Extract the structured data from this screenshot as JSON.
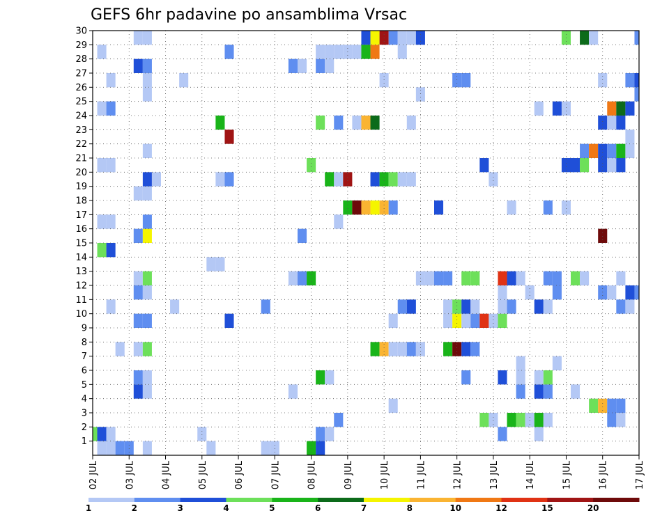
{
  "chart_data": {
    "type": "heatmap",
    "title": "GEFS 6hr padavine po ansamblima Vrsac",
    "xlabel": "",
    "ylabel": "",
    "x_tick_labels": [
      "02 JUL",
      "03 JUL",
      "04 JUL",
      "05 JUL",
      "06 JUL",
      "07 JUL",
      "08 JUL",
      "09 JUL",
      "10 JUL",
      "11 JUL",
      "12 JUL",
      "13 JUL",
      "14 JUL",
      "15 JUL",
      "16 JUL",
      "17 JUL"
    ],
    "x_range_steps": [
      0,
      60
    ],
    "steps_per_day": 4,
    "y_tick_labels": [
      "1",
      "2",
      "3",
      "4",
      "5",
      "6",
      "7",
      "8",
      "9",
      "10",
      "11",
      "12",
      "13",
      "14",
      "15",
      "16",
      "17",
      "18",
      "19",
      "20",
      "21",
      "22",
      "23",
      "24",
      "25",
      "26",
      "27",
      "28",
      "29",
      "30"
    ],
    "y_range": [
      0,
      30
    ],
    "grid": true,
    "color_levels": [
      {
        "label": "1",
        "color": "#b4c8f5"
      },
      {
        "label": "2",
        "color": "#5f8ef0"
      },
      {
        "label": "3",
        "color": "#1f4fd8"
      },
      {
        "label": "4",
        "color": "#6de05a"
      },
      {
        "label": "5",
        "color": "#19b419"
      },
      {
        "label": "6",
        "color": "#0c6b1a"
      },
      {
        "label": "7",
        "color": "#f5f500"
      },
      {
        "label": "8",
        "color": "#fab432"
      },
      {
        "label": "10",
        "color": "#f07814"
      },
      {
        "label": "12",
        "color": "#e03214"
      },
      {
        "label": "15",
        "color": "#a01414"
      },
      {
        "label": "20",
        "color": "#6e0a0a"
      }
    ],
    "cells": [
      {
        "m": 0,
        "t": 1,
        "c": 1
      },
      {
        "m": 0,
        "t": 2,
        "c": 1
      },
      {
        "m": 0,
        "t": 3,
        "c": 2
      },
      {
        "m": 0,
        "t": 4,
        "c": 2
      },
      {
        "m": 0,
        "t": 6,
        "c": 1
      },
      {
        "m": 0,
        "t": 13,
        "c": 1
      },
      {
        "m": 0,
        "t": 19,
        "c": 1
      },
      {
        "m": 0,
        "t": 20,
        "c": 1
      },
      {
        "m": 0,
        "t": 24,
        "c": 5
      },
      {
        "m": 0,
        "t": 25,
        "c": 3
      },
      {
        "m": 1,
        "t": 0,
        "c": 4
      },
      {
        "m": 1,
        "t": 1,
        "c": 3
      },
      {
        "m": 1,
        "t": 2,
        "c": 1
      },
      {
        "m": 1,
        "t": 12,
        "c": 1
      },
      {
        "m": 1,
        "t": 25,
        "c": 2
      },
      {
        "m": 1,
        "t": 26,
        "c": 1
      },
      {
        "m": 1,
        "t": 45,
        "c": 2
      },
      {
        "m": 1,
        "t": 49,
        "c": 1
      },
      {
        "m": 2,
        "t": 27,
        "c": 2
      },
      {
        "m": 2,
        "t": 43,
        "c": 4
      },
      {
        "m": 2,
        "t": 44,
        "c": 1
      },
      {
        "m": 2,
        "t": 46,
        "c": 5
      },
      {
        "m": 2,
        "t": 47,
        "c": 4
      },
      {
        "m": 2,
        "t": 48,
        "c": 1
      },
      {
        "m": 2,
        "t": 49,
        "c": 5
      },
      {
        "m": 2,
        "t": 50,
        "c": 1
      },
      {
        "m": 2,
        "t": 57,
        "c": 2
      },
      {
        "m": 2,
        "t": 58,
        "c": 1
      },
      {
        "m": 3,
        "t": 33,
        "c": 1
      },
      {
        "m": 3,
        "t": 55,
        "c": 4
      },
      {
        "m": 3,
        "t": 56,
        "c": 8
      },
      {
        "m": 3,
        "t": 57,
        "c": 2
      },
      {
        "m": 3,
        "t": 58,
        "c": 2
      },
      {
        "m": 4,
        "t": 5,
        "c": 3
      },
      {
        "m": 4,
        "t": 6,
        "c": 1
      },
      {
        "m": 4,
        "t": 22,
        "c": 1
      },
      {
        "m": 4,
        "t": 47,
        "c": 2
      },
      {
        "m": 4,
        "t": 49,
        "c": 3
      },
      {
        "m": 4,
        "t": 50,
        "c": 2
      },
      {
        "m": 4,
        "t": 53,
        "c": 1
      },
      {
        "m": 5,
        "t": 5,
        "c": 2
      },
      {
        "m": 5,
        "t": 6,
        "c": 1
      },
      {
        "m": 5,
        "t": 25,
        "c": 5
      },
      {
        "m": 5,
        "t": 26,
        "c": 1
      },
      {
        "m": 5,
        "t": 41,
        "c": 2
      },
      {
        "m": 5,
        "t": 45,
        "c": 3
      },
      {
        "m": 5,
        "t": 47,
        "c": 1
      },
      {
        "m": 5,
        "t": 49,
        "c": 1
      },
      {
        "m": 5,
        "t": 50,
        "c": 4
      },
      {
        "m": 6,
        "t": 47,
        "c": 1
      },
      {
        "m": 6,
        "t": 51,
        "c": 1
      },
      {
        "m": 7,
        "t": 3,
        "c": 1
      },
      {
        "m": 7,
        "t": 5,
        "c": 1
      },
      {
        "m": 7,
        "t": 6,
        "c": 4
      },
      {
        "m": 7,
        "t": 31,
        "c": 5
      },
      {
        "m": 7,
        "t": 32,
        "c": 8
      },
      {
        "m": 7,
        "t": 33,
        "c": 1
      },
      {
        "m": 7,
        "t": 34,
        "c": 1
      },
      {
        "m": 7,
        "t": 35,
        "c": 2
      },
      {
        "m": 7,
        "t": 36,
        "c": 1
      },
      {
        "m": 7,
        "t": 39,
        "c": 5
      },
      {
        "m": 7,
        "t": 40,
        "c": 12
      },
      {
        "m": 7,
        "t": 41,
        "c": 3
      },
      {
        "m": 7,
        "t": 42,
        "c": 2
      },
      {
        "m": 9,
        "t": 5,
        "c": 2
      },
      {
        "m": 9,
        "t": 6,
        "c": 2
      },
      {
        "m": 9,
        "t": 15,
        "c": 3
      },
      {
        "m": 9,
        "t": 33,
        "c": 1
      },
      {
        "m": 9,
        "t": 39,
        "c": 1
      },
      {
        "m": 9,
        "t": 40,
        "c": 7
      },
      {
        "m": 9,
        "t": 41,
        "c": 1
      },
      {
        "m": 9,
        "t": 42,
        "c": 2
      },
      {
        "m": 9,
        "t": 43,
        "c": 10
      },
      {
        "m": 9,
        "t": 44,
        "c": 1
      },
      {
        "m": 9,
        "t": 45,
        "c": 4
      },
      {
        "m": 10,
        "t": 2,
        "c": 1
      },
      {
        "m": 10,
        "t": 9,
        "c": 1
      },
      {
        "m": 10,
        "t": 19,
        "c": 2
      },
      {
        "m": 10,
        "t": 34,
        "c": 2
      },
      {
        "m": 10,
        "t": 35,
        "c": 3
      },
      {
        "m": 10,
        "t": 39,
        "c": 1
      },
      {
        "m": 10,
        "t": 40,
        "c": 4
      },
      {
        "m": 10,
        "t": 41,
        "c": 3
      },
      {
        "m": 10,
        "t": 42,
        "c": 1
      },
      {
        "m": 10,
        "t": 45,
        "c": 1
      },
      {
        "m": 10,
        "t": 46,
        "c": 2
      },
      {
        "m": 10,
        "t": 49,
        "c": 3
      },
      {
        "m": 10,
        "t": 50,
        "c": 1
      },
      {
        "m": 10,
        "t": 58,
        "c": 2
      },
      {
        "m": 10,
        "t": 59,
        "c": 1
      },
      {
        "m": 11,
        "t": 5,
        "c": 2
      },
      {
        "m": 11,
        "t": 6,
        "c": 1
      },
      {
        "m": 11,
        "t": 45,
        "c": 1
      },
      {
        "m": 11,
        "t": 48,
        "c": 1
      },
      {
        "m": 11,
        "t": 51,
        "c": 2
      },
      {
        "m": 11,
        "t": 56,
        "c": 2
      },
      {
        "m": 11,
        "t": 57,
        "c": 1
      },
      {
        "m": 11,
        "t": 59,
        "c": 3
      },
      {
        "m": 11,
        "t": 60,
        "c": 2
      },
      {
        "m": 12,
        "t": 5,
        "c": 1
      },
      {
        "m": 12,
        "t": 6,
        "c": 4
      },
      {
        "m": 12,
        "t": 22,
        "c": 1
      },
      {
        "m": 12,
        "t": 23,
        "c": 2
      },
      {
        "m": 12,
        "t": 24,
        "c": 5
      },
      {
        "m": 12,
        "t": 36,
        "c": 1
      },
      {
        "m": 12,
        "t": 37,
        "c": 1
      },
      {
        "m": 12,
        "t": 38,
        "c": 2
      },
      {
        "m": 12,
        "t": 39,
        "c": 2
      },
      {
        "m": 12,
        "t": 41,
        "c": 4
      },
      {
        "m": 12,
        "t": 42,
        "c": 4
      },
      {
        "m": 12,
        "t": 45,
        "c": 10
      },
      {
        "m": 12,
        "t": 46,
        "c": 3
      },
      {
        "m": 12,
        "t": 47,
        "c": 1
      },
      {
        "m": 12,
        "t": 50,
        "c": 2
      },
      {
        "m": 12,
        "t": 51,
        "c": 2
      },
      {
        "m": 12,
        "t": 53,
        "c": 4
      },
      {
        "m": 12,
        "t": 54,
        "c": 1
      },
      {
        "m": 12,
        "t": 58,
        "c": 1
      },
      {
        "m": 13,
        "t": 13,
        "c": 1
      },
      {
        "m": 13,
        "t": 14,
        "c": 1
      },
      {
        "m": 14,
        "t": 1,
        "c": 4
      },
      {
        "m": 14,
        "t": 2,
        "c": 3
      },
      {
        "m": 15,
        "t": 5,
        "c": 2
      },
      {
        "m": 15,
        "t": 6,
        "c": 7
      },
      {
        "m": 15,
        "t": 23,
        "c": 2
      },
      {
        "m": 15,
        "t": 56,
        "c": 12
      },
      {
        "m": 16,
        "t": 1,
        "c": 1
      },
      {
        "m": 16,
        "t": 2,
        "c": 1
      },
      {
        "m": 16,
        "t": 6,
        "c": 2
      },
      {
        "m": 16,
        "t": 27,
        "c": 1
      },
      {
        "m": 17,
        "t": 28,
        "c": 5
      },
      {
        "m": 17,
        "t": 29,
        "c": 12
      },
      {
        "m": 17,
        "t": 30,
        "c": 8
      },
      {
        "m": 17,
        "t": 31,
        "c": 7
      },
      {
        "m": 17,
        "t": 32,
        "c": 8
      },
      {
        "m": 17,
        "t": 33,
        "c": 2
      },
      {
        "m": 17,
        "t": 38,
        "c": 3
      },
      {
        "m": 17,
        "t": 46,
        "c": 1
      },
      {
        "m": 17,
        "t": 50,
        "c": 2
      },
      {
        "m": 17,
        "t": 52,
        "c": 1
      },
      {
        "m": 18,
        "t": 5,
        "c": 1
      },
      {
        "m": 18,
        "t": 6,
        "c": 1
      },
      {
        "m": 19,
        "t": 6,
        "c": 3
      },
      {
        "m": 19,
        "t": 7,
        "c": 1
      },
      {
        "m": 19,
        "t": 14,
        "c": 1
      },
      {
        "m": 19,
        "t": 15,
        "c": 2
      },
      {
        "m": 19,
        "t": 26,
        "c": 5
      },
      {
        "m": 19,
        "t": 27,
        "c": 1
      },
      {
        "m": 19,
        "t": 28,
        "c": 11
      },
      {
        "m": 19,
        "t": 31,
        "c": 3
      },
      {
        "m": 19,
        "t": 32,
        "c": 5
      },
      {
        "m": 19,
        "t": 33,
        "c": 4
      },
      {
        "m": 19,
        "t": 34,
        "c": 1
      },
      {
        "m": 19,
        "t": 35,
        "c": 1
      },
      {
        "m": 19,
        "t": 44,
        "c": 1
      },
      {
        "m": 20,
        "t": 1,
        "c": 1
      },
      {
        "m": 20,
        "t": 2,
        "c": 1
      },
      {
        "m": 20,
        "t": 24,
        "c": 4
      },
      {
        "m": 20,
        "t": 43,
        "c": 3
      },
      {
        "m": 20,
        "t": 52,
        "c": 3
      },
      {
        "m": 20,
        "t": 53,
        "c": 3
      },
      {
        "m": 20,
        "t": 54,
        "c": 4
      },
      {
        "m": 20,
        "t": 56,
        "c": 3
      },
      {
        "m": 20,
        "t": 57,
        "c": 1
      },
      {
        "m": 20,
        "t": 58,
        "c": 3
      },
      {
        "m": 21,
        "t": 6,
        "c": 1
      },
      {
        "m": 21,
        "t": 54,
        "c": 2
      },
      {
        "m": 21,
        "t": 55,
        "c": 9
      },
      {
        "m": 21,
        "t": 56,
        "c": 3
      },
      {
        "m": 21,
        "t": 57,
        "c": 2
      },
      {
        "m": 21,
        "t": 58,
        "c": 5
      },
      {
        "m": 21,
        "t": 59,
        "c": 1
      },
      {
        "m": 22,
        "t": 15,
        "c": 11
      },
      {
        "m": 22,
        "t": 59,
        "c": 1
      },
      {
        "m": 23,
        "t": 14,
        "c": 5
      },
      {
        "m": 23,
        "t": 25,
        "c": 4
      },
      {
        "m": 23,
        "t": 27,
        "c": 2
      },
      {
        "m": 23,
        "t": 29,
        "c": 1
      },
      {
        "m": 23,
        "t": 30,
        "c": 8
      },
      {
        "m": 23,
        "t": 31,
        "c": 6
      },
      {
        "m": 23,
        "t": 35,
        "c": 1
      },
      {
        "m": 23,
        "t": 56,
        "c": 3
      },
      {
        "m": 23,
        "t": 57,
        "c": 1
      },
      {
        "m": 23,
        "t": 58,
        "c": 3
      },
      {
        "m": 24,
        "t": 1,
        "c": 1
      },
      {
        "m": 24,
        "t": 2,
        "c": 2
      },
      {
        "m": 24,
        "t": 49,
        "c": 1
      },
      {
        "m": 24,
        "t": 51,
        "c": 3
      },
      {
        "m": 24,
        "t": 52,
        "c": 1
      },
      {
        "m": 24,
        "t": 57,
        "c": 9
      },
      {
        "m": 24,
        "t": 58,
        "c": 6
      },
      {
        "m": 24,
        "t": 59,
        "c": 3
      },
      {
        "m": 25,
        "t": 6,
        "c": 1
      },
      {
        "m": 25,
        "t": 36,
        "c": 1
      },
      {
        "m": 25,
        "t": 60,
        "c": 2
      },
      {
        "m": 26,
        "t": 2,
        "c": 1
      },
      {
        "m": 26,
        "t": 6,
        "c": 1
      },
      {
        "m": 26,
        "t": 10,
        "c": 1
      },
      {
        "m": 26,
        "t": 32,
        "c": 1
      },
      {
        "m": 26,
        "t": 40,
        "c": 2
      },
      {
        "m": 26,
        "t": 41,
        "c": 2
      },
      {
        "m": 26,
        "t": 56,
        "c": 1
      },
      {
        "m": 26,
        "t": 59,
        "c": 2
      },
      {
        "m": 26,
        "t": 60,
        "c": 3
      },
      {
        "m": 27,
        "t": 5,
        "c": 3
      },
      {
        "m": 27,
        "t": 6,
        "c": 2
      },
      {
        "m": 27,
        "t": 22,
        "c": 2
      },
      {
        "m": 27,
        "t": 23,
        "c": 1
      },
      {
        "m": 27,
        "t": 25,
        "c": 2
      },
      {
        "m": 27,
        "t": 26,
        "c": 1
      },
      {
        "m": 28,
        "t": 1,
        "c": 1
      },
      {
        "m": 28,
        "t": 15,
        "c": 2
      },
      {
        "m": 28,
        "t": 25,
        "c": 1
      },
      {
        "m": 28,
        "t": 26,
        "c": 1
      },
      {
        "m": 28,
        "t": 27,
        "c": 1
      },
      {
        "m": 28,
        "t": 28,
        "c": 1
      },
      {
        "m": 28,
        "t": 29,
        "c": 1
      },
      {
        "m": 28,
        "t": 30,
        "c": 5
      },
      {
        "m": 28,
        "t": 31,
        "c": 9
      },
      {
        "m": 28,
        "t": 34,
        "c": 1
      },
      {
        "m": 29,
        "t": 5,
        "c": 1
      },
      {
        "m": 29,
        "t": 6,
        "c": 1
      },
      {
        "m": 29,
        "t": 30,
        "c": 3
      },
      {
        "m": 29,
        "t": 31,
        "c": 7
      },
      {
        "m": 29,
        "t": 32,
        "c": 11
      },
      {
        "m": 29,
        "t": 33,
        "c": 2
      },
      {
        "m": 29,
        "t": 34,
        "c": 1
      },
      {
        "m": 29,
        "t": 35,
        "c": 1
      },
      {
        "m": 29,
        "t": 36,
        "c": 3
      },
      {
        "m": 29,
        "t": 52,
        "c": 4
      },
      {
        "m": 29,
        "t": 54,
        "c": 6
      },
      {
        "m": 29,
        "t": 55,
        "c": 1
      },
      {
        "m": 29,
        "t": 60,
        "c": 2
      }
    ]
  }
}
